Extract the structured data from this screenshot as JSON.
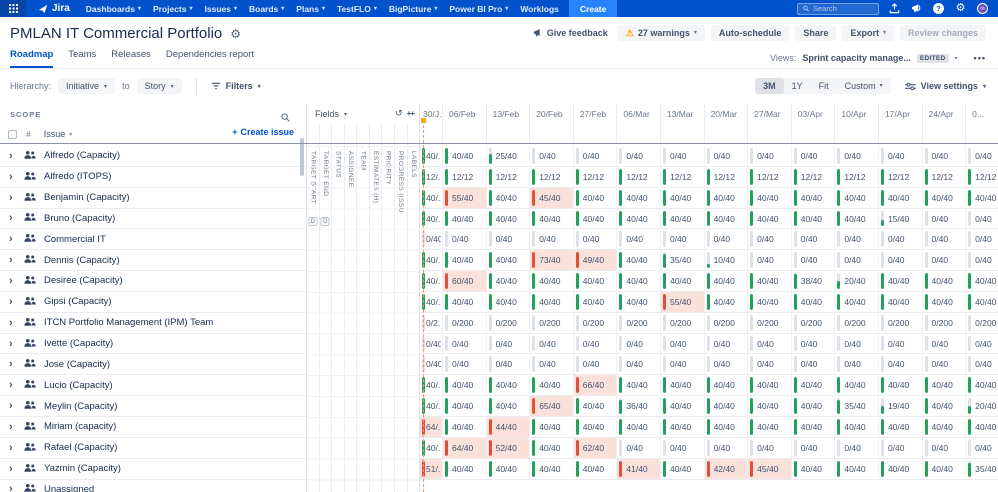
{
  "navbar": {
    "brand": "Jira",
    "menus": [
      {
        "label": "Dashboards",
        "caret": true
      },
      {
        "label": "Projects",
        "caret": true
      },
      {
        "label": "Issues",
        "caret": true
      },
      {
        "label": "Boards",
        "caret": true
      },
      {
        "label": "Plans",
        "caret": true
      },
      {
        "label": "TestFLO",
        "caret": true
      },
      {
        "label": "BigPicture",
        "caret": true
      },
      {
        "label": "Power BI Pro",
        "caret": true
      },
      {
        "label": "Worklogs",
        "caret": false
      }
    ],
    "create_label": "Create",
    "search_placeholder": "Search"
  },
  "header": {
    "title": "PMLAN IT Commercial Portfolio",
    "actions": {
      "give_feedback": "Give feedback",
      "warnings": "27 warnings",
      "auto_schedule": "Auto-schedule",
      "share": "Share",
      "export": "Export",
      "review_changes": "Review changes"
    },
    "tabs": [
      {
        "label": "Roadmap",
        "active": true
      },
      {
        "label": "Teams",
        "active": false
      },
      {
        "label": "Releases",
        "active": false
      },
      {
        "label": "Dependencies report",
        "active": false
      }
    ],
    "views_label": "Views:",
    "view_name": "Sprint capacity manage...",
    "view_badge": "EDITED",
    "more": "•••"
  },
  "toolbar": {
    "hierarchy_label": "Hierarchy:",
    "from_value": "Initiative",
    "to_word": "to",
    "to_value": "Story",
    "filters_label": "Filters",
    "ranges": [
      "3M",
      "1Y",
      "Fit",
      "Custom"
    ],
    "active_range": "3M",
    "view_settings_label": "View settings"
  },
  "scope": {
    "title": "SCOPE",
    "hash": "#",
    "issue_label": "Issue",
    "create_issue": "Create issue"
  },
  "fields": {
    "label": "Fields",
    "columns": [
      {
        "label": "TARGET START",
        "badge": "D"
      },
      {
        "label": "TARGET END",
        "badge": "D"
      },
      {
        "label": "STATUS",
        "badge": ""
      },
      {
        "label": "ASSIGNEE",
        "badge": ""
      },
      {
        "label": "TEAM",
        "badge": ""
      },
      {
        "label": "ESTIMATES (H)",
        "badge": ""
      },
      {
        "label": "PRIORITY",
        "badge": ""
      },
      {
        "label": "PROGRESS (ISSUE COUNT)",
        "badge": ""
      },
      {
        "label": "LABELS",
        "badge": ""
      }
    ]
  },
  "timeline": {
    "dates": [
      "30/J...",
      "06/Feb",
      "13/Feb",
      "20/Feb",
      "27/Feb",
      "06/Mar",
      "13/Mar",
      "20/Mar",
      "27/Mar",
      "03/Apr",
      "10/Apr",
      "17/Apr",
      "24/Apr",
      "0..."
    ]
  },
  "rows": [
    {
      "label": "Alfredo (Capacity)",
      "cells": [
        "40/...",
        "40/40",
        "25/40",
        "0/40",
        "0/40",
        "0/40",
        "0/40",
        "0/40",
        "0/40",
        "0/40",
        "0/40",
        "0/40",
        "0/40",
        "0/40"
      ]
    },
    {
      "label": "Alfredo (ITOPS)",
      "cells": [
        "12/...",
        "12/12",
        "12/12",
        "12/12",
        "12/12",
        "12/12",
        "12/12",
        "12/12",
        "12/12",
        "12/12",
        "12/12",
        "12/12",
        "12/12",
        "12/12"
      ]
    },
    {
      "label": "Benjamin (Capacity)",
      "cells": [
        "40/...",
        "55/40",
        "40/40",
        "45/40",
        "40/40",
        "40/40",
        "40/40",
        "40/40",
        "40/40",
        "40/40",
        "40/40",
        "40/40",
        "40/40",
        "40/40"
      ]
    },
    {
      "label": "Bruno (Capacity)",
      "cells": [
        "40/...",
        "40/40",
        "40/40",
        "40/40",
        "40/40",
        "40/40",
        "40/40",
        "40/40",
        "40/40",
        "40/40",
        "40/40",
        "15/40",
        "0/40",
        "0/40"
      ]
    },
    {
      "label": "Commercial IT",
      "cells": [
        "0/40",
        "0/40",
        "0/40",
        "0/40",
        "0/40",
        "0/40",
        "0/40",
        "0/40",
        "0/40",
        "0/40",
        "0/40",
        "0/40",
        "0/40",
        "0/40"
      ]
    },
    {
      "label": "Dennis (Capacity)",
      "cells": [
        "40/...",
        "40/40",
        "40/40",
        "73/40",
        "49/40",
        "40/40",
        "35/40",
        "10/40",
        "0/40",
        "0/40",
        "0/40",
        "0/40",
        "0/40",
        "0/40"
      ]
    },
    {
      "label": "Desiree (Capacity)",
      "cells": [
        "40/...",
        "60/40",
        "40/40",
        "40/40",
        "40/40",
        "40/40",
        "40/40",
        "40/40",
        "40/40",
        "38/40",
        "20/40",
        "40/40",
        "40/40",
        "40/40"
      ]
    },
    {
      "label": "Gipsi (Capacity)",
      "cells": [
        "40/...",
        "40/40",
        "40/40",
        "40/40",
        "40/40",
        "40/40",
        "55/40",
        "40/40",
        "40/40",
        "40/40",
        "40/40",
        "40/40",
        "40/40",
        "40/40"
      ]
    },
    {
      "label": "ITCN Portfolio Management (IPM) Team",
      "cells": [
        "0/2...",
        "0/200",
        "0/200",
        "0/200",
        "0/200",
        "0/200",
        "0/200",
        "0/200",
        "0/200",
        "0/200",
        "0/200",
        "0/200",
        "0/200",
        "0/200"
      ]
    },
    {
      "label": "Ivette (Capacity)",
      "cells": [
        "0/40",
        "0/40",
        "0/40",
        "0/40",
        "0/40",
        "0/40",
        "0/40",
        "0/40",
        "0/40",
        "0/40",
        "0/40",
        "0/40",
        "0/40",
        "0/40"
      ]
    },
    {
      "label": "Jose (Capacity)",
      "cells": [
        "0/40",
        "0/40",
        "0/40",
        "0/40",
        "0/40",
        "0/40",
        "0/40",
        "0/40",
        "0/40",
        "0/40",
        "0/40",
        "0/40",
        "0/40",
        "0/40"
      ]
    },
    {
      "label": "Lucio (Capacity)",
      "cells": [
        "40/...",
        "40/40",
        "40/40",
        "40/40",
        "66/40",
        "40/40",
        "40/40",
        "40/40",
        "40/40",
        "40/40",
        "40/40",
        "40/40",
        "40/40",
        "40/40"
      ]
    },
    {
      "label": "Meylin (Capacity)",
      "cells": [
        "40/...",
        "40/40",
        "40/40",
        "65/40",
        "40/40",
        "36/40",
        "40/40",
        "40/40",
        "40/40",
        "40/40",
        "35/40",
        "19/40",
        "40/40",
        "20/40"
      ]
    },
    {
      "label": "Miriam (capacity)",
      "cells": [
        "64/...",
        "40/40",
        "44/40",
        "40/40",
        "40/40",
        "40/40",
        "40/40",
        "40/40",
        "40/40",
        "40/40",
        "40/40",
        "40/40",
        "40/40",
        "40/40"
      ]
    },
    {
      "label": "Rafael (Capacity)",
      "cells": [
        "40/...",
        "64/40",
        "52/40",
        "40/40",
        "62/40",
        "0/40",
        "0/40",
        "0/40",
        "0/40",
        "0/40",
        "0/40",
        "0/40",
        "0/40",
        "0/40"
      ]
    },
    {
      "label": "Yazmin (Capacity)",
      "cells": [
        "51/...",
        "40/40",
        "40/40",
        "40/40",
        "40/40",
        "41/40",
        "40/40",
        "42/40",
        "45/40",
        "40/40",
        "40/40",
        "40/40",
        "40/40",
        "35/40"
      ]
    },
    {
      "label": "Unassigned",
      "cells": []
    }
  ],
  "colors": {
    "navbar": "#0052CC",
    "accent": "#0052CC",
    "green": "#22A15C",
    "red": "#E0503A",
    "over_bg": "#FAE2DA",
    "track": "#DFE1E6",
    "warning": "#FFAB00",
    "today_line": "#FF8F73"
  }
}
